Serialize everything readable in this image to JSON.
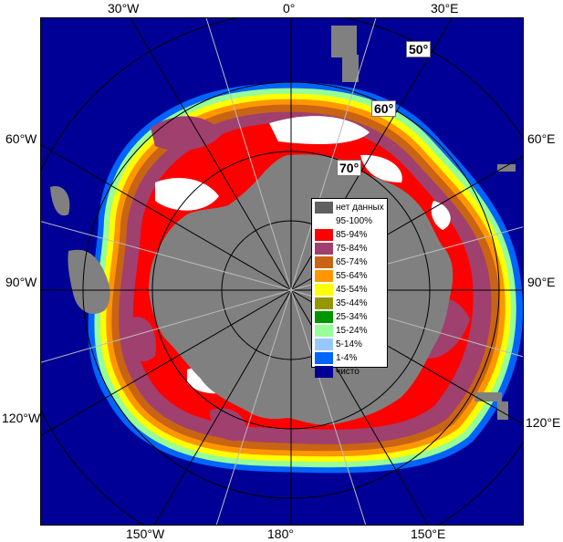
{
  "longitude_labels": {
    "top_left": "30°W",
    "top_center": "0°",
    "top_right": "30°E",
    "left_upper": "60°W",
    "right_upper": "60°E",
    "left_middle": "90°W",
    "right_middle": "90°E",
    "left_lower": "120°W",
    "right_lower": "120°E",
    "bottom_left": "150°W",
    "bottom_center": "180°",
    "bottom_right": "150°E"
  },
  "latitude_labels": {
    "lat50": "50°",
    "lat60": "60°",
    "lat70": "70°"
  },
  "legend": {
    "items": [
      {
        "label": "нет данных",
        "color": "#606060"
      },
      {
        "label": "95-100%",
        "color": "#ffffff"
      },
      {
        "label": "85-94%",
        "color": "#ff0000"
      },
      {
        "label": "75-84%",
        "color": "#a0406e"
      },
      {
        "label": "65-74%",
        "color": "#c86414"
      },
      {
        "label": "55-64%",
        "color": "#ff9600"
      },
      {
        "label": "45-54%",
        "color": "#ffff00"
      },
      {
        "label": "35-44%",
        "color": "#969600"
      },
      {
        "label": "25-34%",
        "color": "#009600"
      },
      {
        "label": "15-24%",
        "color": "#96ff96"
      },
      {
        "label": "5-14%",
        "color": "#96c8ff"
      },
      {
        "label": "1-4%",
        "color": "#0064ff"
      },
      {
        "label": "чисто",
        "color": "#000096"
      }
    ]
  },
  "colors": {
    "ocean": "#000096",
    "land": "#808080",
    "grid": "#000000"
  }
}
